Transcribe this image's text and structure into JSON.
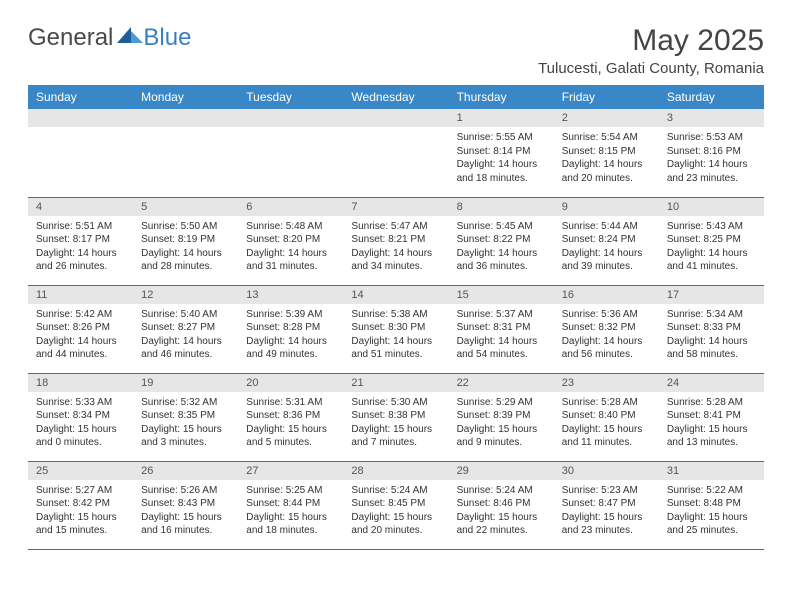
{
  "brand": {
    "word1": "General",
    "word2": "Blue"
  },
  "title": "May 2025",
  "location": "Tulucesti, Galati County, Romania",
  "colors": {
    "header_bg": "#3a87c8",
    "header_text": "#ffffff",
    "daynum_bg": "#e6e6e6",
    "daynum_text": "#555555",
    "row_border": "#3a6fa8",
    "body_text": "#333333",
    "brand_gray": "#4a4a4a",
    "brand_blue": "#3a7fc4",
    "title_color": "#444444",
    "shape_dark": "#1f5d99",
    "shape_light": "#4b9bd8"
  },
  "weekdays": [
    "Sunday",
    "Monday",
    "Tuesday",
    "Wednesday",
    "Thursday",
    "Friday",
    "Saturday"
  ],
  "weeks": [
    [
      null,
      null,
      null,
      null,
      {
        "n": "1",
        "sr": "Sunrise: 5:55 AM",
        "ss": "Sunset: 8:14 PM",
        "d1": "Daylight: 14 hours",
        "d2": "and 18 minutes."
      },
      {
        "n": "2",
        "sr": "Sunrise: 5:54 AM",
        "ss": "Sunset: 8:15 PM",
        "d1": "Daylight: 14 hours",
        "d2": "and 20 minutes."
      },
      {
        "n": "3",
        "sr": "Sunrise: 5:53 AM",
        "ss": "Sunset: 8:16 PM",
        "d1": "Daylight: 14 hours",
        "d2": "and 23 minutes."
      }
    ],
    [
      {
        "n": "4",
        "sr": "Sunrise: 5:51 AM",
        "ss": "Sunset: 8:17 PM",
        "d1": "Daylight: 14 hours",
        "d2": "and 26 minutes."
      },
      {
        "n": "5",
        "sr": "Sunrise: 5:50 AM",
        "ss": "Sunset: 8:19 PM",
        "d1": "Daylight: 14 hours",
        "d2": "and 28 minutes."
      },
      {
        "n": "6",
        "sr": "Sunrise: 5:48 AM",
        "ss": "Sunset: 8:20 PM",
        "d1": "Daylight: 14 hours",
        "d2": "and 31 minutes."
      },
      {
        "n": "7",
        "sr": "Sunrise: 5:47 AM",
        "ss": "Sunset: 8:21 PM",
        "d1": "Daylight: 14 hours",
        "d2": "and 34 minutes."
      },
      {
        "n": "8",
        "sr": "Sunrise: 5:45 AM",
        "ss": "Sunset: 8:22 PM",
        "d1": "Daylight: 14 hours",
        "d2": "and 36 minutes."
      },
      {
        "n": "9",
        "sr": "Sunrise: 5:44 AM",
        "ss": "Sunset: 8:24 PM",
        "d1": "Daylight: 14 hours",
        "d2": "and 39 minutes."
      },
      {
        "n": "10",
        "sr": "Sunrise: 5:43 AM",
        "ss": "Sunset: 8:25 PM",
        "d1": "Daylight: 14 hours",
        "d2": "and 41 minutes."
      }
    ],
    [
      {
        "n": "11",
        "sr": "Sunrise: 5:42 AM",
        "ss": "Sunset: 8:26 PM",
        "d1": "Daylight: 14 hours",
        "d2": "and 44 minutes."
      },
      {
        "n": "12",
        "sr": "Sunrise: 5:40 AM",
        "ss": "Sunset: 8:27 PM",
        "d1": "Daylight: 14 hours",
        "d2": "and 46 minutes."
      },
      {
        "n": "13",
        "sr": "Sunrise: 5:39 AM",
        "ss": "Sunset: 8:28 PM",
        "d1": "Daylight: 14 hours",
        "d2": "and 49 minutes."
      },
      {
        "n": "14",
        "sr": "Sunrise: 5:38 AM",
        "ss": "Sunset: 8:30 PM",
        "d1": "Daylight: 14 hours",
        "d2": "and 51 minutes."
      },
      {
        "n": "15",
        "sr": "Sunrise: 5:37 AM",
        "ss": "Sunset: 8:31 PM",
        "d1": "Daylight: 14 hours",
        "d2": "and 54 minutes."
      },
      {
        "n": "16",
        "sr": "Sunrise: 5:36 AM",
        "ss": "Sunset: 8:32 PM",
        "d1": "Daylight: 14 hours",
        "d2": "and 56 minutes."
      },
      {
        "n": "17",
        "sr": "Sunrise: 5:34 AM",
        "ss": "Sunset: 8:33 PM",
        "d1": "Daylight: 14 hours",
        "d2": "and 58 minutes."
      }
    ],
    [
      {
        "n": "18",
        "sr": "Sunrise: 5:33 AM",
        "ss": "Sunset: 8:34 PM",
        "d1": "Daylight: 15 hours",
        "d2": "and 0 minutes."
      },
      {
        "n": "19",
        "sr": "Sunrise: 5:32 AM",
        "ss": "Sunset: 8:35 PM",
        "d1": "Daylight: 15 hours",
        "d2": "and 3 minutes."
      },
      {
        "n": "20",
        "sr": "Sunrise: 5:31 AM",
        "ss": "Sunset: 8:36 PM",
        "d1": "Daylight: 15 hours",
        "d2": "and 5 minutes."
      },
      {
        "n": "21",
        "sr": "Sunrise: 5:30 AM",
        "ss": "Sunset: 8:38 PM",
        "d1": "Daylight: 15 hours",
        "d2": "and 7 minutes."
      },
      {
        "n": "22",
        "sr": "Sunrise: 5:29 AM",
        "ss": "Sunset: 8:39 PM",
        "d1": "Daylight: 15 hours",
        "d2": "and 9 minutes."
      },
      {
        "n": "23",
        "sr": "Sunrise: 5:28 AM",
        "ss": "Sunset: 8:40 PM",
        "d1": "Daylight: 15 hours",
        "d2": "and 11 minutes."
      },
      {
        "n": "24",
        "sr": "Sunrise: 5:28 AM",
        "ss": "Sunset: 8:41 PM",
        "d1": "Daylight: 15 hours",
        "d2": "and 13 minutes."
      }
    ],
    [
      {
        "n": "25",
        "sr": "Sunrise: 5:27 AM",
        "ss": "Sunset: 8:42 PM",
        "d1": "Daylight: 15 hours",
        "d2": "and 15 minutes."
      },
      {
        "n": "26",
        "sr": "Sunrise: 5:26 AM",
        "ss": "Sunset: 8:43 PM",
        "d1": "Daylight: 15 hours",
        "d2": "and 16 minutes."
      },
      {
        "n": "27",
        "sr": "Sunrise: 5:25 AM",
        "ss": "Sunset: 8:44 PM",
        "d1": "Daylight: 15 hours",
        "d2": "and 18 minutes."
      },
      {
        "n": "28",
        "sr": "Sunrise: 5:24 AM",
        "ss": "Sunset: 8:45 PM",
        "d1": "Daylight: 15 hours",
        "d2": "and 20 minutes."
      },
      {
        "n": "29",
        "sr": "Sunrise: 5:24 AM",
        "ss": "Sunset: 8:46 PM",
        "d1": "Daylight: 15 hours",
        "d2": "and 22 minutes."
      },
      {
        "n": "30",
        "sr": "Sunrise: 5:23 AM",
        "ss": "Sunset: 8:47 PM",
        "d1": "Daylight: 15 hours",
        "d2": "and 23 minutes."
      },
      {
        "n": "31",
        "sr": "Sunrise: 5:22 AM",
        "ss": "Sunset: 8:48 PM",
        "d1": "Daylight: 15 hours",
        "d2": "and 25 minutes."
      }
    ]
  ]
}
